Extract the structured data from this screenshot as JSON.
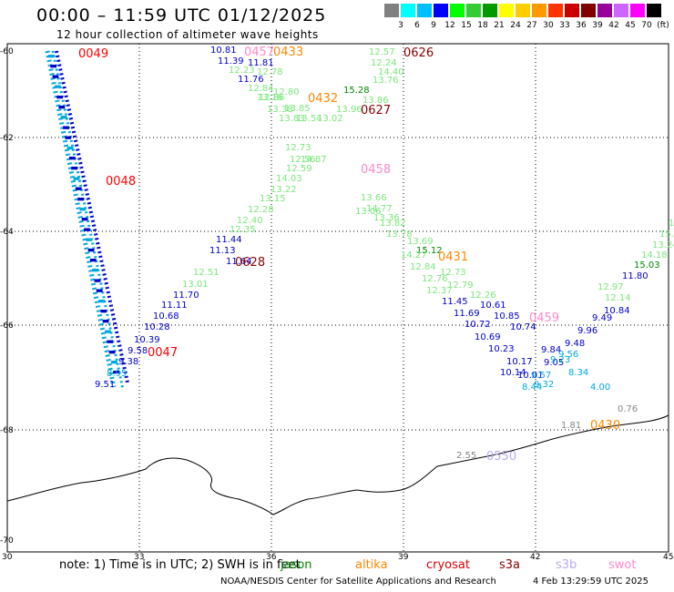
{
  "header": {
    "title": "00:00 – 11:59 UTC 01/12/2025",
    "subtitle": "12 hour collection of altimeter wave heights"
  },
  "legend": {
    "unit": "(ft)",
    "colors": [
      "#808080",
      "#00ffff",
      "#00bfff",
      "#0000ff",
      "#00ff00",
      "#33cc33",
      "#009900",
      "#ffff00",
      "#ffcc00",
      "#ff9900",
      "#ff3300",
      "#cc0000",
      "#800000",
      "#990099",
      "#cc66ff",
      "#ff00ff",
      "#000000"
    ],
    "labels": [
      "3",
      "6",
      "9",
      "12",
      "15",
      "18",
      "21",
      "24",
      "27",
      "30",
      "33",
      "36",
      "39",
      "42",
      "45",
      "70"
    ]
  },
  "axes": {
    "lon_ticks": [
      "30",
      "33",
      "36",
      "39",
      "42",
      "45"
    ],
    "lat_ticks": [
      "-60",
      "-62",
      "-64",
      "-66",
      "-68",
      "-70"
    ]
  },
  "colors": {
    "jason": "#008800",
    "altika": "#ff8800",
    "cryosat": "#dd0000",
    "s3a": "#880000",
    "s3b": "#bbaaee",
    "swot": "#ff88cc",
    "light_green": "#7ce87c",
    "blue": "#0000cc",
    "cyan": "#00aadd",
    "gray": "#888888"
  },
  "track_labels": [
    {
      "text": "0049",
      "color": "#ff0000"
    },
    {
      "text": "0048",
      "color": "#ff0000"
    },
    {
      "text": "0047",
      "color": "#ff0000"
    },
    {
      "text": "0457",
      "color": "#ff88cc"
    },
    {
      "text": "0433",
      "color": "#ff8800"
    },
    {
      "text": "0626",
      "color": "#880000"
    },
    {
      "text": "0432",
      "color": "#ff8800"
    },
    {
      "text": "0627",
      "color": "#880000"
    },
    {
      "text": "0458",
      "color": "#ff88cc"
    },
    {
      "text": "0628",
      "color": "#880000"
    },
    {
      "text": "0431",
      "color": "#ff8800"
    },
    {
      "text": "0459",
      "color": "#ff88cc"
    },
    {
      "text": "0430",
      "color": "#ff8800"
    },
    {
      "text": "0550",
      "color": "#bbaaee"
    }
  ],
  "wave_values": [
    {
      "text": "10.81",
      "color": "#0000cc"
    },
    {
      "text": "11.39",
      "color": "#0000cc"
    },
    {
      "text": "11.81",
      "color": "#0000cc"
    },
    {
      "text": "12.23",
      "color": "#7ce87c"
    },
    {
      "text": "12.78",
      "color": "#7ce87c"
    },
    {
      "text": "11.76",
      "color": "#0000cc"
    },
    {
      "text": "12.84",
      "color": "#7ce87c"
    },
    {
      "text": "12.86",
      "color": "#7ce87c"
    },
    {
      "text": "13.16",
      "color": "#7ce87c"
    },
    {
      "text": "12.80",
      "color": "#7ce87c"
    },
    {
      "text": "13.38",
      "color": "#7ce87c"
    },
    {
      "text": "13.85",
      "color": "#7ce87c"
    },
    {
      "text": "13.83",
      "color": "#7ce87c"
    },
    {
      "text": "13.54",
      "color": "#7ce87c"
    },
    {
      "text": "13.02",
      "color": "#7ce87c"
    },
    {
      "text": "12.57",
      "color": "#7ce87c"
    },
    {
      "text": "12.24",
      "color": "#7ce87c"
    },
    {
      "text": "14.40",
      "color": "#7ce87c"
    },
    {
      "text": "13.76",
      "color": "#7ce87c"
    },
    {
      "text": "15.28",
      "color": "#008800"
    },
    {
      "text": "13.86",
      "color": "#7ce87c"
    },
    {
      "text": "13.96",
      "color": "#7ce87c"
    },
    {
      "text": "12.73",
      "color": "#7ce87c"
    },
    {
      "text": "12.56",
      "color": "#7ce87c"
    },
    {
      "text": "14.87",
      "color": "#7ce87c"
    },
    {
      "text": "12.59",
      "color": "#7ce87c"
    },
    {
      "text": "14.03",
      "color": "#7ce87c"
    },
    {
      "text": "13.22",
      "color": "#7ce87c"
    },
    {
      "text": "13.15",
      "color": "#7ce87c"
    },
    {
      "text": "12.28",
      "color": "#7ce87c"
    },
    {
      "text": "12.40",
      "color": "#7ce87c"
    },
    {
      "text": "12.35",
      "color": "#7ce87c"
    },
    {
      "text": "11.44",
      "color": "#0000cc"
    },
    {
      "text": "11.13",
      "color": "#0000cc"
    },
    {
      "text": "11.64",
      "color": "#0000cc"
    },
    {
      "text": "12.51",
      "color": "#7ce87c"
    },
    {
      "text": "13.01",
      "color": "#7ce87c"
    },
    {
      "text": "11.70",
      "color": "#0000cc"
    },
    {
      "text": "11.11",
      "color": "#0000cc"
    },
    {
      "text": "10.68",
      "color": "#0000cc"
    },
    {
      "text": "10.28",
      "color": "#0000cc"
    },
    {
      "text": "10.39",
      "color": "#0000cc"
    },
    {
      "text": "9.58",
      "color": "#0000cc"
    },
    {
      "text": "9.38",
      "color": "#0000cc"
    },
    {
      "text": "8.95",
      "color": "#00aadd"
    },
    {
      "text": "9.51",
      "color": "#0000cc"
    },
    {
      "text": "13.66",
      "color": "#7ce87c"
    },
    {
      "text": "13.06",
      "color": "#7ce87c"
    },
    {
      "text": "14.77",
      "color": "#7ce87c"
    },
    {
      "text": "13.36",
      "color": "#7ce87c"
    },
    {
      "text": "13.82",
      "color": "#7ce87c"
    },
    {
      "text": "13.78",
      "color": "#7ce87c"
    },
    {
      "text": "13.69",
      "color": "#7ce87c"
    },
    {
      "text": "15.12",
      "color": "#008800"
    },
    {
      "text": "14.27",
      "color": "#7ce87c"
    },
    {
      "text": "12.84",
      "color": "#7ce87c"
    },
    {
      "text": "12.73",
      "color": "#7ce87c"
    },
    {
      "text": "12.76",
      "color": "#7ce87c"
    },
    {
      "text": "12.79",
      "color": "#7ce87c"
    },
    {
      "text": "12.37",
      "color": "#7ce87c"
    },
    {
      "text": "12.26",
      "color": "#7ce87c"
    },
    {
      "text": "11.45",
      "color": "#0000cc"
    },
    {
      "text": "10.61",
      "color": "#0000cc"
    },
    {
      "text": "11.69",
      "color": "#0000cc"
    },
    {
      "text": "10.85",
      "color": "#0000cc"
    },
    {
      "text": "10.72",
      "color": "#0000cc"
    },
    {
      "text": "10.74",
      "color": "#0000cc"
    },
    {
      "text": "10.69",
      "color": "#0000cc"
    },
    {
      "text": "10.23",
      "color": "#0000cc"
    },
    {
      "text": "10.17",
      "color": "#0000cc"
    },
    {
      "text": "9.84",
      "color": "#0000cc"
    },
    {
      "text": "10.14",
      "color": "#0000cc"
    },
    {
      "text": "9.56",
      "color": "#00aadd"
    },
    {
      "text": "9.05",
      "color": "#0000cc"
    },
    {
      "text": "9.23",
      "color": "#00aadd"
    },
    {
      "text": "10.01",
      "color": "#0000cc"
    },
    {
      "text": "9.57",
      "color": "#00aadd"
    },
    {
      "text": "8.34",
      "color": "#00aadd"
    },
    {
      "text": "8.44",
      "color": "#00aadd"
    },
    {
      "text": "9.32",
      "color": "#00aadd"
    },
    {
      "text": "4.00",
      "color": "#00aadd"
    },
    {
      "text": "9.49",
      "color": "#0000cc"
    },
    {
      "text": "9.96",
      "color": "#0000cc"
    },
    {
      "text": "9.48",
      "color": "#0000cc"
    },
    {
      "text": "10.84",
      "color": "#0000cc"
    },
    {
      "text": "12.14",
      "color": "#7ce87c"
    },
    {
      "text": "12.97",
      "color": "#7ce87c"
    },
    {
      "text": "11.80",
      "color": "#0000cc"
    },
    {
      "text": "15.03",
      "color": "#008800"
    },
    {
      "text": "14.18",
      "color": "#7ce87c"
    },
    {
      "text": "13.24",
      "color": "#7ce87c"
    },
    {
      "text": "15.0",
      "color": "#7ce87c"
    },
    {
      "text": "15.",
      "color": "#7ce87c"
    },
    {
      "text": "0.76",
      "color": "#888888"
    },
    {
      "text": "1.81",
      "color": "#888888"
    },
    {
      "text": "2.55",
      "color": "#888888"
    }
  ],
  "footer": {
    "note": "note:  1) Time is in UTC;  2) SWH is in feet",
    "satellites": [
      {
        "name": "jason",
        "color": "#008800"
      },
      {
        "name": "altika",
        "color": "#ff8800"
      },
      {
        "name": "cryosat",
        "color": "#dd0000"
      },
      {
        "name": "s3a",
        "color": "#880000"
      },
      {
        "name": "s3b",
        "color": "#bbaaee"
      },
      {
        "name": "swot",
        "color": "#ff88cc"
      }
    ],
    "credit": "NOAA/NESDIS Center for Satellite Applications and Research",
    "timestamp": "4 Feb 13:29:59 UTC 2025"
  }
}
